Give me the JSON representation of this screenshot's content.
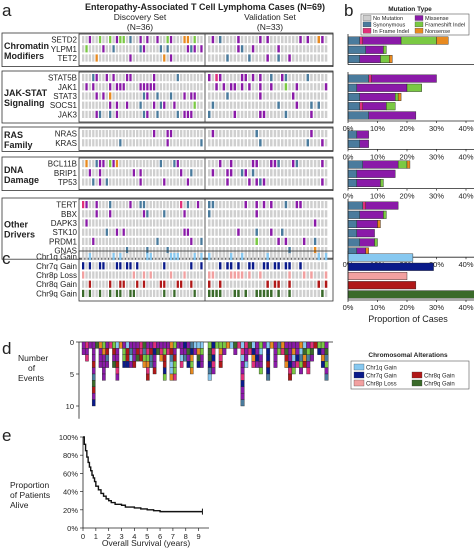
{
  "panels": {
    "a": "a",
    "b": "b",
    "c": "c",
    "d": "d",
    "e": "e"
  },
  "header": {
    "title": "Enteropathy-Associated T Cell Lymphoma Cases (N=69)",
    "discovery_label": "Discovery Set",
    "discovery_n": "(N=36)",
    "validation_label": "Validation Set",
    "validation_n": "(N=33)"
  },
  "colors": {
    "no_mutation": "#cfcfcf",
    "synonymous": "#4a7b9d",
    "in_frame": "#e0307a",
    "missense": "#8a1aa8",
    "frameshift": "#7ac943",
    "nonsense": "#e88a20",
    "chr1q": "#87c8f0",
    "chr7q": "#0a1a8a",
    "chr8p": "#f2a0a0",
    "chr8q": "#b01818",
    "chr9q": "#3a6a2a"
  },
  "groups": [
    {
      "label_lines": [
        "Chromatin",
        "Modifiers"
      ],
      "genes": [
        "SETD2",
        "YLPM1",
        "TET2"
      ]
    },
    {
      "label_lines": [
        "JAK-STAT",
        "Signaling"
      ],
      "genes": [
        "STAT5B",
        "JAK1",
        "STAT3",
        "SOCS1",
        "JAK3"
      ]
    },
    {
      "label_lines": [
        "RAS",
        "Family"
      ],
      "genes": [
        "NRAS",
        "KRAS"
      ]
    },
    {
      "label_lines": [
        "DNA",
        "Damage"
      ],
      "genes": [
        "BCL11B",
        "BRIP1",
        "TP53"
      ]
    },
    {
      "label_lines": [
        "Other",
        "Drivers"
      ],
      "genes": [
        "TERT",
        "BBX",
        "DAPK3",
        "STK10",
        "PRDM1",
        "GNAS"
      ]
    }
  ],
  "cna_rows": [
    "Chr1q Gain",
    "Chr7q Gain",
    "Chr8p Loss",
    "Chr8q Gain",
    "Chr9q Gain"
  ],
  "legend_b": {
    "title": "Mutation Type",
    "items": [
      "No Mutation",
      "Synonymous",
      "In Frame Indel",
      "Missense",
      "Frameshift Indel",
      "Nonsense"
    ]
  },
  "legend_cna": {
    "title": "Chromosomal Alterations",
    "items": [
      "Chr1q Gain",
      "Chr7q Gain",
      "Chr8p Loss",
      "Chr8q Gain",
      "Chr9q Gain"
    ]
  },
  "panel_d": {
    "ylabel_lines": [
      "Number",
      "of",
      "Events"
    ],
    "ticks": [
      "0",
      "5",
      "10"
    ]
  },
  "panel_e": {
    "ylabel_lines": [
      "Proportion",
      "of Patients",
      "Alive"
    ],
    "xlabel": "Overall Survival (years)",
    "yticks": [
      "100%",
      "80%",
      "60%",
      "40%",
      "20%",
      "0%"
    ],
    "xticks": [
      "0",
      "1",
      "2",
      "3",
      "4",
      "5",
      "6",
      "7",
      "8",
      "9"
    ]
  },
  "chart_data": [
    {
      "type": "bar",
      "panel": "b",
      "orientation": "horizontal",
      "stacked": true,
      "xlabel": "Proportion of Cases",
      "xlim": [
        0,
        0.45
      ],
      "xticks": [
        "0%",
        "10%",
        "20%",
        "30%",
        "40%"
      ],
      "categories": [
        "SETD2",
        "YLPM1",
        "TET2",
        "STAT5B",
        "JAK1",
        "STAT3",
        "SOCS1",
        "JAK3",
        "NRAS",
        "KRAS",
        "BCL11B",
        "BRIP1",
        "TP53",
        "TERT",
        "BBX",
        "DAPK3",
        "STK10",
        "PRDM1",
        "GNAS"
      ],
      "series": [
        {
          "name": "Synonymous",
          "values": [
            0.04,
            0.06,
            0.04,
            0.07,
            0.03,
            0.04,
            0.04,
            0.07,
            0.03,
            0.04,
            0.05,
            0.03,
            0.03,
            0.05,
            0.04,
            0.03,
            0.03,
            0.04,
            0.03
          ]
        },
        {
          "name": "In Frame Indel",
          "values": [
            0.01,
            0.0,
            0.0,
            0.01,
            0.0,
            0.0,
            0.01,
            0.0,
            0.0,
            0.0,
            0.0,
            0.0,
            0.0,
            0.01,
            0.0,
            0.0,
            0.0,
            0.0,
            0.0
          ]
        },
        {
          "name": "Missense",
          "values": [
            0.13,
            0.06,
            0.07,
            0.22,
            0.17,
            0.12,
            0.08,
            0.16,
            0.04,
            0.03,
            0.12,
            0.13,
            0.08,
            0.11,
            0.08,
            0.07,
            0.06,
            0.05,
            0.03
          ]
        },
        {
          "name": "Frameshift Indel",
          "values": [
            0.12,
            0.01,
            0.03,
            0.0,
            0.05,
            0.01,
            0.03,
            0.0,
            0.0,
            0.0,
            0.03,
            0.0,
            0.01,
            0.0,
            0.01,
            0.0,
            0.0,
            0.01,
            0.0
          ]
        },
        {
          "name": "Nonsense",
          "values": [
            0.04,
            0.0,
            0.01,
            0.0,
            0.0,
            0.01,
            0.0,
            0.0,
            0.0,
            0.0,
            0.01,
            0.0,
            0.0,
            0.0,
            0.0,
            0.01,
            0.0,
            0.0,
            0.01
          ]
        }
      ]
    },
    {
      "type": "bar",
      "panel": "b",
      "orientation": "horizontal",
      "categories": [
        "Chr1q Gain",
        "Chr7q Gain",
        "Chr8p Loss",
        "Chr8q Gain",
        "Chr9q Gain"
      ],
      "values": [
        0.22,
        0.29,
        0.2,
        0.23,
        0.48
      ]
    },
    {
      "type": "line",
      "panel": "e",
      "xlabel": "Overall Survival (years)",
      "ylabel": "Proportion of Patients Alive",
      "xlim": [
        0,
        9.5
      ],
      "ylim": [
        0,
        1
      ],
      "x": [
        0,
        0.1,
        0.2,
        0.3,
        0.4,
        0.5,
        0.6,
        0.7,
        0.8,
        0.9,
        1.0,
        1.2,
        1.4,
        1.6,
        1.8,
        2.0,
        2.2,
        2.5,
        3.0,
        3.3,
        4.0,
        4.5,
        5.0,
        5.5,
        6.0,
        7.0,
        9.3
      ],
      "y": [
        1.0,
        0.92,
        0.85,
        0.78,
        0.72,
        0.67,
        0.63,
        0.58,
        0.55,
        0.51,
        0.46,
        0.42,
        0.38,
        0.35,
        0.32,
        0.3,
        0.28,
        0.26,
        0.25,
        0.23,
        0.22,
        0.21,
        0.2,
        0.19,
        0.18,
        0.18,
        0.18
      ]
    }
  ]
}
